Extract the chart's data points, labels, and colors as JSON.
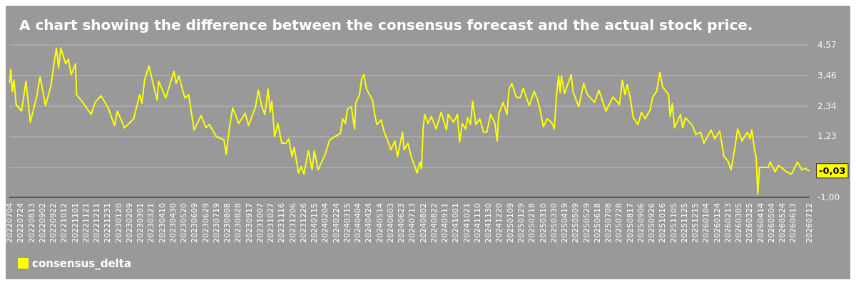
{
  "chart_data": {
    "type": "line",
    "title": "A chart showing the difference between the consensus forecast and the actual stock price.",
    "x": [
      "2022-07-04",
      "2022-07-06",
      "2022-07-09",
      "2022-07-12",
      "2022-07-16",
      "2022-07-26",
      "2022-08-03",
      "2022-08-11",
      "2022-08-23",
      "2022-08-29",
      "2022-09-08",
      "2022-09-18",
      "2022-09-25",
      "2022-09-28",
      "2022-10-02",
      "2022-10-06",
      "2022-10-15",
      "2022-10-20",
      "2022-10-25",
      "2022-11-02",
      "2022-11-04",
      "2022-11-14",
      "2022-12-01",
      "2022-12-08",
      "2022-12-19",
      "2023-01-01",
      "2023-01-13",
      "2023-01-18",
      "2023-01-31",
      "2023-02-17",
      "2023-02-28",
      "2023-03-04",
      "2023-03-09",
      "2023-03-17",
      "2023-04-01",
      "2023-04-04",
      "2023-04-17",
      "2023-05-02",
      "2023-05-06",
      "2023-05-11",
      "2023-05-22",
      "2023-05-29",
      "2023-06-08",
      "2023-06-21",
      "2023-06-30",
      "2023-07-06",
      "2023-07-19",
      "2023-08-02",
      "2023-08-06",
      "2023-08-12",
      "2023-08-18",
      "2023-08-29",
      "2023-09-10",
      "2023-09-16",
      "2023-09-29",
      "2023-10-04",
      "2023-10-10",
      "2023-10-16",
      "2023-10-22",
      "2023-10-26",
      "2023-10-29",
      "2023-11-03",
      "2023-11-09",
      "2023-11-16",
      "2023-11-24",
      "2023-11-29",
      "2023-12-05",
      "2023-12-09",
      "2023-12-17",
      "2023-12-22",
      "2023-12-27",
      "2024-01-04",
      "2024-01-11",
      "2024-01-15",
      "2024-01-22",
      "2024-02-04",
      "2024-02-12",
      "2024-03-03",
      "2024-03-07",
      "2024-03-12",
      "2024-03-16",
      "2024-03-23",
      "2024-03-29",
      "2024-03-31",
      "2024-04-07",
      "2024-04-11",
      "2024-04-15",
      "2024-04-20",
      "2024-05-01",
      "2024-05-05",
      "2024-05-09",
      "2024-05-17",
      "2024-05-22",
      "2024-06-04",
      "2024-06-11",
      "2024-06-16",
      "2024-06-25",
      "2024-06-28",
      "2024-07-05",
      "2024-07-11",
      "2024-07-17",
      "2024-07-22",
      "2024-07-27",
      "2024-07-30",
      "2024-08-02",
      "2024-08-05",
      "2024-08-11",
      "2024-08-17",
      "2024-08-26",
      "2024-09-04",
      "2024-09-14",
      "2024-09-17",
      "2024-09-27",
      "2024-10-04",
      "2024-10-08",
      "2024-10-13",
      "2024-10-19",
      "2024-10-23",
      "2024-10-28",
      "2024-11-01",
      "2024-11-07",
      "2024-11-14",
      "2024-11-21",
      "2024-11-27",
      "2024-12-04",
      "2024-12-12",
      "2024-12-16",
      "2024-12-19",
      "2024-12-27",
      "2025-01-03",
      "2025-01-07",
      "2025-01-12",
      "2025-01-20",
      "2025-01-27",
      "2025-02-02",
      "2025-02-13",
      "2025-02-22",
      "2025-02-28",
      "2025-03-05",
      "2025-03-11",
      "2025-03-18",
      "2025-03-26",
      "2025-03-31",
      "2025-04-04",
      "2025-04-08",
      "2025-04-11",
      "2025-04-13",
      "2025-04-19",
      "2025-05-01",
      "2025-05-05",
      "2025-05-15",
      "2025-05-24",
      "2025-05-31",
      "2025-06-13",
      "2025-06-21",
      "2025-07-04",
      "2025-07-17",
      "2025-07-29",
      "2025-08-03",
      "2025-08-08",
      "2025-08-12",
      "2025-08-18",
      "2025-08-23",
      "2025-09-01",
      "2025-09-07",
      "2025-09-14",
      "2025-09-23",
      "2025-09-28",
      "2025-10-05",
      "2025-10-11",
      "2025-10-16",
      "2025-10-27",
      "2025-10-30",
      "2025-11-03",
      "2025-11-07",
      "2025-11-18",
      "2025-11-22",
      "2025-11-27",
      "2025-12-10",
      "2025-12-16",
      "2025-12-25",
      "2025-12-31",
      "2026-01-13",
      "2026-01-20",
      "2026-01-29",
      "2026-02-06",
      "2026-02-13",
      "2026-02-19",
      "2026-02-26",
      "2026-03-03",
      "2026-03-11",
      "2026-03-21",
      "2026-03-26",
      "2026-03-29",
      "2026-04-03",
      "2026-04-06",
      "2026-04-09",
      "2026-04-12",
      "2026-04-28",
      "2026-05-02",
      "2026-05-11",
      "2026-05-17",
      "2026-06-01",
      "2026-06-10",
      "2026-06-21",
      "2026-06-29",
      "2026-07-06",
      "2026-07-12"
    ],
    "series": [
      {
        "name": "consensus_delta",
        "color": "#ffff00",
        "values": [
          3.2,
          3.68,
          2.87,
          3.28,
          2.39,
          2.15,
          3.24,
          1.74,
          2.71,
          3.4,
          2.35,
          3.08,
          4.09,
          4.45,
          3.72,
          4.45,
          3.88,
          4.05,
          3.48,
          3.88,
          2.75,
          2.51,
          2.03,
          2.47,
          2.71,
          2.27,
          1.62,
          2.15,
          1.54,
          1.87,
          2.75,
          2.43,
          3.28,
          3.8,
          2.55,
          3.24,
          2.63,
          3.6,
          3.16,
          3.44,
          2.63,
          2.75,
          1.46,
          1.99,
          1.54,
          1.66,
          1.22,
          1.1,
          0.57,
          1.54,
          2.27,
          1.7,
          2.07,
          1.62,
          2.31,
          2.92,
          2.35,
          2.03,
          2.96,
          2.11,
          2.51,
          1.22,
          1.7,
          0.98,
          0.98,
          1.14,
          0.49,
          0.82,
          -0.11,
          0.13,
          -0.15,
          0.7,
          0.01,
          0.7,
          0.01,
          0.57,
          1.1,
          1.34,
          1.87,
          1.7,
          2.23,
          2.31,
          1.5,
          2.43,
          2.75,
          3.32,
          3.48,
          2.96,
          2.55,
          2.03,
          1.66,
          1.83,
          1.42,
          0.74,
          1.06,
          0.49,
          1.38,
          0.74,
          0.98,
          0.49,
          0.17,
          -0.11,
          0.29,
          0.05,
          1.54,
          2.03,
          1.7,
          1.95,
          1.5,
          2.11,
          1.46,
          2.03,
          1.74,
          2.03,
          1.02,
          1.7,
          1.5,
          1.91,
          1.66,
          2.51,
          1.66,
          1.87,
          1.38,
          1.38,
          2.03,
          1.7,
          1.06,
          2.03,
          2.47,
          2.03,
          2.96,
          3.16,
          2.67,
          2.63,
          2.99,
          2.35,
          2.87,
          2.59,
          2.19,
          1.58,
          1.87,
          1.74,
          1.5,
          2.71,
          3.44,
          2.83,
          3.44,
          2.79,
          3.48,
          2.83,
          2.31,
          3.16,
          2.75,
          2.47,
          2.92,
          2.15,
          2.67,
          2.39,
          3.28,
          2.75,
          3.12,
          2.59,
          1.91,
          1.66,
          2.11,
          1.87,
          2.19,
          2.67,
          2.87,
          3.56,
          3.04,
          2.75,
          1.95,
          2.43,
          1.54,
          2.03,
          1.54,
          1.91,
          1.62,
          1.3,
          1.38,
          0.98,
          1.46,
          1.14,
          1.42,
          0.49,
          0.33,
          0.01,
          0.82,
          1.5,
          1.06,
          1.38,
          1.14,
          1.46,
          0.74,
          0.49,
          -0.88,
          0.09,
          0.09,
          0.29,
          -0.07,
          0.17,
          -0.07,
          -0.15,
          0.29,
          0.01,
          0.05,
          -0.03
        ]
      }
    ],
    "xlim": [
      "2022-07-04",
      "2026-07-12"
    ],
    "xticks": [
      {
        "value": "2022-07-04",
        "label": "20220704"
      },
      {
        "value": "2022-07-24",
        "label": "20220724"
      },
      {
        "value": "2022-08-13",
        "label": "20220813"
      },
      {
        "value": "2022-09-02",
        "label": "20220902"
      },
      {
        "value": "2022-09-22",
        "label": "20220922"
      },
      {
        "value": "2022-10-12",
        "label": "20221012"
      },
      {
        "value": "2022-11-01",
        "label": "20221101"
      },
      {
        "value": "2022-11-21",
        "label": "20221121"
      },
      {
        "value": "2022-12-11",
        "label": "20221211"
      },
      {
        "value": "2022-12-31",
        "label": "20221231"
      },
      {
        "value": "2023-01-20",
        "label": "20230120"
      },
      {
        "value": "2023-02-09",
        "label": "20230209"
      },
      {
        "value": "2023-03-01",
        "label": "20230301"
      },
      {
        "value": "2023-03-21",
        "label": "20230321"
      },
      {
        "value": "2023-04-10",
        "label": "20230410"
      },
      {
        "value": "2023-04-30",
        "label": "20230430"
      },
      {
        "value": "2023-05-20",
        "label": "20230520"
      },
      {
        "value": "2023-06-09",
        "label": "20230609"
      },
      {
        "value": "2023-06-29",
        "label": "20230629"
      },
      {
        "value": "2023-07-19",
        "label": "20230719"
      },
      {
        "value": "2023-08-08",
        "label": "20230808"
      },
      {
        "value": "2023-08-28",
        "label": "20230828"
      },
      {
        "value": "2023-09-17",
        "label": "20230917"
      },
      {
        "value": "2023-10-07",
        "label": "20231007"
      },
      {
        "value": "2023-10-27",
        "label": "20231027"
      },
      {
        "value": "2023-11-16",
        "label": "20231116"
      },
      {
        "value": "2023-12-06",
        "label": "20231206"
      },
      {
        "value": "2023-12-26",
        "label": "20231226"
      },
      {
        "value": "2024-01-15",
        "label": "20240115"
      },
      {
        "value": "2024-02-04",
        "label": "20240204"
      },
      {
        "value": "2024-02-24",
        "label": "20240224"
      },
      {
        "value": "2024-03-15",
        "label": "20240315"
      },
      {
        "value": "2024-04-04",
        "label": "20240404"
      },
      {
        "value": "2024-04-24",
        "label": "20240424"
      },
      {
        "value": "2024-05-14",
        "label": "20240514"
      },
      {
        "value": "2024-06-03",
        "label": "20240603"
      },
      {
        "value": "2024-06-23",
        "label": "20240623"
      },
      {
        "value": "2024-07-13",
        "label": "20240713"
      },
      {
        "value": "2024-08-02",
        "label": "20240802"
      },
      {
        "value": "2024-08-22",
        "label": "20240822"
      },
      {
        "value": "2024-09-11",
        "label": "20240911"
      },
      {
        "value": "2024-10-01",
        "label": "20241001"
      },
      {
        "value": "2024-10-21",
        "label": "20241021"
      },
      {
        "value": "2024-11-10",
        "label": "20241110"
      },
      {
        "value": "2024-11-30",
        "label": "20241130"
      },
      {
        "value": "2024-12-20",
        "label": "20241220"
      },
      {
        "value": "2025-01-09",
        "label": "20250109"
      },
      {
        "value": "2025-01-29",
        "label": "20250129"
      },
      {
        "value": "2025-02-18",
        "label": "20250218"
      },
      {
        "value": "2025-03-10",
        "label": "20250310"
      },
      {
        "value": "2025-03-30",
        "label": "20250330"
      },
      {
        "value": "2025-04-19",
        "label": "20250419"
      },
      {
        "value": "2025-05-09",
        "label": "20250509"
      },
      {
        "value": "2025-05-29",
        "label": "20250529"
      },
      {
        "value": "2025-06-18",
        "label": "20250618"
      },
      {
        "value": "2025-07-08",
        "label": "20250708"
      },
      {
        "value": "2025-07-28",
        "label": "20250728"
      },
      {
        "value": "2025-08-17",
        "label": "20250817"
      },
      {
        "value": "2025-09-06",
        "label": "20250906"
      },
      {
        "value": "2025-09-26",
        "label": "20250926"
      },
      {
        "value": "2025-10-16",
        "label": "20251016"
      },
      {
        "value": "2025-11-05",
        "label": "20251105"
      },
      {
        "value": "2025-11-25",
        "label": "20251125"
      },
      {
        "value": "2025-12-15",
        "label": "20251215"
      },
      {
        "value": "2026-01-04",
        "label": "20260104"
      },
      {
        "value": "2026-01-24",
        "label": "20260124"
      },
      {
        "value": "2026-02-13",
        "label": "20260213"
      },
      {
        "value": "2026-03-05",
        "label": "20260305"
      },
      {
        "value": "2026-03-25",
        "label": "20260325"
      },
      {
        "value": "2026-04-14",
        "label": "20260414"
      },
      {
        "value": "2026-05-04",
        "label": "20260504"
      },
      {
        "value": "2026-05-24",
        "label": "20260524"
      },
      {
        "value": "2026-06-13",
        "label": "20260613"
      },
      {
        "value": "2026-07-12",
        "label": "20260712"
      }
    ],
    "ylim": [
      -1,
      4.57
    ],
    "yticks": [
      {
        "value": 4.57,
        "label": "4,57"
      },
      {
        "value": 3.46,
        "label": "3,46"
      },
      {
        "value": 2.34,
        "label": "2,34"
      },
      {
        "value": 1.23,
        "label": "1,23"
      },
      {
        "value": 0.11,
        "label": null
      },
      {
        "value": -1,
        "label": "-1,00"
      }
    ],
    "annotations": [
      {
        "text": "-0,03",
        "x": "2026-07-12",
        "y": -0.03
      }
    ],
    "grid": "y",
    "legend": "bottom left",
    "marker": "none",
    "line_style": "solid"
  }
}
